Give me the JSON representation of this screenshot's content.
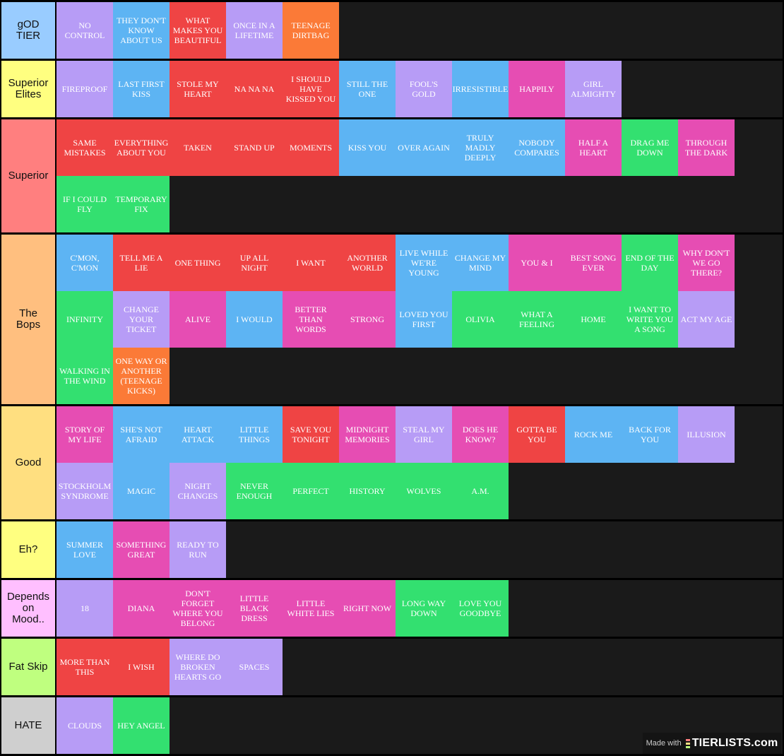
{
  "colors": {
    "purple": "#b79cf6",
    "blue": "#5db4f3",
    "red": "#ef4444",
    "orange": "#fb7a37",
    "pink": "#e64db3",
    "green": "#33e070"
  },
  "tiers": [
    {
      "label": "gOD\nTIER",
      "color": "#99ccff",
      "items": [
        {
          "text": "NO CONTROL",
          "c": "purple"
        },
        {
          "text": "THEY DON'T KNOW ABOUT US",
          "c": "blue"
        },
        {
          "text": "WHAT MAKES YOU BEAUTIFUL",
          "c": "red"
        },
        {
          "text": "ONCE IN A LIFETIME",
          "c": "purple"
        },
        {
          "text": "TEENAGE DIRTBAG",
          "c": "orange"
        }
      ]
    },
    {
      "label": "Superior\nElites",
      "color": "#ffff80",
      "items": [
        {
          "text": "FIREPROOF",
          "c": "purple"
        },
        {
          "text": "LAST FIRST KISS",
          "c": "blue"
        },
        {
          "text": "STOLE MY HEART",
          "c": "red"
        },
        {
          "text": "NA NA NA",
          "c": "red"
        },
        {
          "text": "I SHOULD HAVE KISSED YOU",
          "c": "red"
        },
        {
          "text": "STILL THE ONE",
          "c": "blue"
        },
        {
          "text": "FOOL'S GOLD",
          "c": "purple"
        },
        {
          "text": "IRRESISTIBLE",
          "c": "blue"
        },
        {
          "text": "HAPPILY",
          "c": "pink"
        },
        {
          "text": "GIRL ALMIGHTY",
          "c": "purple"
        }
      ]
    },
    {
      "label": "Superior",
      "color": "#ff7f7f",
      "items": [
        {
          "text": "SAME MISTAKES",
          "c": "red"
        },
        {
          "text": "EVERYTHING ABOUT YOU",
          "c": "red"
        },
        {
          "text": "TAKEN",
          "c": "red"
        },
        {
          "text": "STAND UP",
          "c": "red"
        },
        {
          "text": "MOMENTS",
          "c": "red"
        },
        {
          "text": "KISS YOU",
          "c": "blue"
        },
        {
          "text": "OVER AGAIN",
          "c": "blue"
        },
        {
          "text": "TRULY MADLY DEEPLY",
          "c": "blue"
        },
        {
          "text": "NOBODY COMPARES",
          "c": "blue"
        },
        {
          "text": "HALF A HEART",
          "c": "pink"
        },
        {
          "text": "DRAG ME DOWN",
          "c": "green"
        },
        {
          "text": "THROUGH THE DARK",
          "c": "pink"
        },
        {
          "text": "IF I COULD FLY",
          "c": "green"
        },
        {
          "text": "TEMPORARY FIX",
          "c": "green"
        }
      ]
    },
    {
      "label": "The\nBops",
      "color": "#ffbf7f",
      "items": [
        {
          "text": "C'MON, C'MON",
          "c": "blue"
        },
        {
          "text": "TELL ME A LIE",
          "c": "red"
        },
        {
          "text": "ONE THING",
          "c": "red"
        },
        {
          "text": "UP ALL NIGHT",
          "c": "red"
        },
        {
          "text": "I WANT",
          "c": "red"
        },
        {
          "text": "ANOTHER WORLD",
          "c": "red"
        },
        {
          "text": "LIVE WHILE WE'RE YOUNG",
          "c": "blue"
        },
        {
          "text": "CHANGE MY MIND",
          "c": "blue"
        },
        {
          "text": "YOU & I",
          "c": "pink"
        },
        {
          "text": "BEST SONG EVER",
          "c": "pink"
        },
        {
          "text": "END OF THE DAY",
          "c": "green"
        },
        {
          "text": "WHY DON'T WE GO THERE?",
          "c": "pink"
        },
        {
          "text": "INFINITY",
          "c": "green"
        },
        {
          "text": "CHANGE YOUR TICKET",
          "c": "purple"
        },
        {
          "text": "ALIVE",
          "c": "pink"
        },
        {
          "text": "I WOULD",
          "c": "blue"
        },
        {
          "text": "BETTER THAN WORDS",
          "c": "pink"
        },
        {
          "text": "STRONG",
          "c": "pink"
        },
        {
          "text": "LOVED YOU FIRST",
          "c": "blue"
        },
        {
          "text": "OLIVIA",
          "c": "green"
        },
        {
          "text": "WHAT A FEELING",
          "c": "green"
        },
        {
          "text": "HOME",
          "c": "green"
        },
        {
          "text": "I WANT TO WRITE YOU A SONG",
          "c": "green"
        },
        {
          "text": "ACT MY AGE",
          "c": "purple"
        },
        {
          "text": "WALKING IN THE WIND",
          "c": "green"
        },
        {
          "text": "ONE WAY OR ANOTHER (TEENAGE KICKS)",
          "c": "orange"
        }
      ]
    },
    {
      "label": "Good",
      "color": "#ffdf80",
      "items": [
        {
          "text": "STORY OF MY LIFE",
          "c": "pink"
        },
        {
          "text": "SHE'S NOT AFRAID",
          "c": "blue"
        },
        {
          "text": "HEART ATTACK",
          "c": "blue"
        },
        {
          "text": "LITTLE THINGS",
          "c": "blue"
        },
        {
          "text": "SAVE YOU TONIGHT",
          "c": "red"
        },
        {
          "text": "MIDNIGHT MEMORIES",
          "c": "pink"
        },
        {
          "text": "STEAL MY GIRL",
          "c": "purple"
        },
        {
          "text": "DOES HE KNOW?",
          "c": "pink"
        },
        {
          "text": "GOTTA BE YOU",
          "c": "red"
        },
        {
          "text": "ROCK ME",
          "c": "blue"
        },
        {
          "text": "BACK FOR YOU",
          "c": "blue"
        },
        {
          "text": "ILLUSION",
          "c": "purple"
        },
        {
          "text": "STOCKHOLM SYNDROME",
          "c": "purple"
        },
        {
          "text": "MAGIC",
          "c": "blue"
        },
        {
          "text": "NIGHT CHANGES",
          "c": "purple"
        },
        {
          "text": "NEVER ENOUGH",
          "c": "green"
        },
        {
          "text": "PERFECT",
          "c": "green"
        },
        {
          "text": "HISTORY",
          "c": "green"
        },
        {
          "text": "WOLVES",
          "c": "green"
        },
        {
          "text": "A.M.",
          "c": "green"
        }
      ]
    },
    {
      "label": "Eh?",
      "color": "#ffff80",
      "items": [
        {
          "text": "SUMMER LOVE",
          "c": "blue"
        },
        {
          "text": "SOMETHING GREAT",
          "c": "pink"
        },
        {
          "text": "READY TO RUN",
          "c": "purple"
        }
      ]
    },
    {
      "label": "Depends\non\nMood..",
      "color": "#ffbfff",
      "items": [
        {
          "text": "18",
          "c": "purple"
        },
        {
          "text": "DIANA",
          "c": "pink"
        },
        {
          "text": "DON'T FORGET WHERE YOU BELONG",
          "c": "pink"
        },
        {
          "text": "LITTLE BLACK DRESS",
          "c": "pink"
        },
        {
          "text": "LITTLE WHITE LIES",
          "c": "pink"
        },
        {
          "text": "RIGHT NOW",
          "c": "pink"
        },
        {
          "text": "LONG WAY DOWN",
          "c": "green"
        },
        {
          "text": "LOVE YOU GOODBYE",
          "c": "green"
        }
      ]
    },
    {
      "label": "Fat Skip",
      "color": "#bfff7f",
      "items": [
        {
          "text": "MORE THAN THIS",
          "c": "red"
        },
        {
          "text": "I WISH",
          "c": "red"
        },
        {
          "text": "WHERE DO BROKEN HEARTS GO",
          "c": "purple"
        },
        {
          "text": "SPACES",
          "c": "purple"
        }
      ]
    },
    {
      "label": "HATE",
      "color": "#cfcfcf",
      "items": [
        {
          "text": "CLOUDS",
          "c": "purple"
        },
        {
          "text": "HEY ANGEL",
          "c": "green"
        }
      ]
    }
  ],
  "watermark": {
    "made_with": "Made with",
    "site": "TIERLISTS.com",
    "bar_colors": [
      "#ff7f7f",
      "#ffdf80",
      "#bfff7f"
    ]
  }
}
